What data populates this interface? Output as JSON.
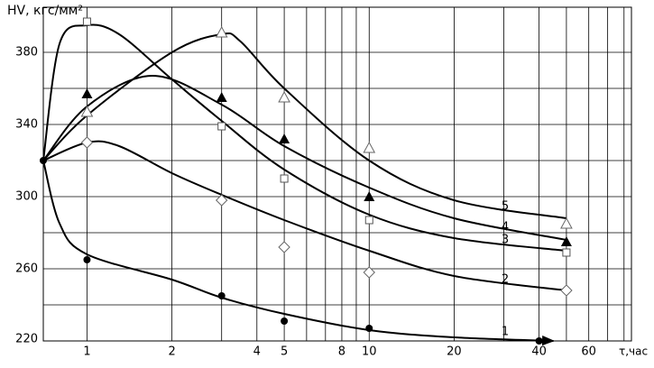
{
  "chart_data": {
    "type": "scatter",
    "y_label": "HV, кгс/мм²",
    "x_label": "τ,час",
    "xscale": "log",
    "xlim": [
      0.7,
      85
    ],
    "ylim": [
      220,
      405
    ],
    "xticks": [
      1,
      2,
      4,
      5,
      8,
      10,
      20,
      40,
      60
    ],
    "xminor": [
      3,
      6,
      7,
      9,
      30,
      50,
      70,
      80
    ],
    "yticks": [
      220,
      260,
      300,
      340,
      380
    ],
    "yminor": [
      240,
      280,
      320,
      360
    ],
    "grid": true,
    "color": "#000000",
    "origin": {
      "x": 0.7,
      "y": 320
    },
    "series": [
      {
        "name": "1",
        "marker": "circle-filled",
        "x": [
          1,
          3,
          5,
          10,
          40
        ],
        "values": [
          265,
          245,
          231,
          227,
          220
        ],
        "curve_x": [
          0.7,
          0.8,
          1,
          2,
          3,
          5,
          10,
          20,
          45
        ],
        "curve_y": [
          320,
          285,
          268,
          254,
          244,
          235,
          226,
          222,
          220
        ]
      },
      {
        "name": "2",
        "marker": "diamond",
        "x": [
          1,
          3,
          5,
          10,
          50
        ],
        "values": [
          330,
          298,
          272,
          258,
          248
        ],
        "curve_x": [
          0.7,
          1,
          1.3,
          2,
          3,
          5,
          10,
          20,
          50
        ],
        "curve_y": [
          320,
          330,
          328,
          313,
          301,
          287,
          270,
          256,
          248
        ]
      },
      {
        "name": "3",
        "marker": "square",
        "x": [
          1,
          3,
          5,
          10,
          50
        ],
        "values": [
          397,
          339,
          310,
          287,
          269
        ],
        "curve_x": [
          0.7,
          0.8,
          1,
          1.3,
          2,
          3,
          5,
          10,
          20,
          50
        ],
        "curve_y": [
          320,
          385,
          395,
          390,
          365,
          342,
          315,
          290,
          277,
          270
        ]
      },
      {
        "name": "4",
        "marker": "triangle-filled",
        "x": [
          1,
          3,
          5,
          10,
          50
        ],
        "values": [
          357,
          355,
          332,
          300,
          275
        ],
        "curve_x": [
          0.7,
          1,
          1.7,
          3,
          5,
          10,
          20,
          50
        ],
        "curve_y": [
          320,
          350,
          367,
          351,
          328,
          305,
          288,
          276
        ]
      },
      {
        "name": "5",
        "marker": "triangle",
        "x": [
          1,
          3,
          5,
          10,
          50
        ],
        "values": [
          347,
          391,
          355,
          327,
          285
        ],
        "curve_x": [
          0.7,
          1,
          2,
          3,
          3.5,
          5,
          10,
          20,
          50
        ],
        "curve_y": [
          320,
          345,
          380,
          390,
          386,
          360,
          320,
          298,
          288
        ]
      }
    ]
  }
}
